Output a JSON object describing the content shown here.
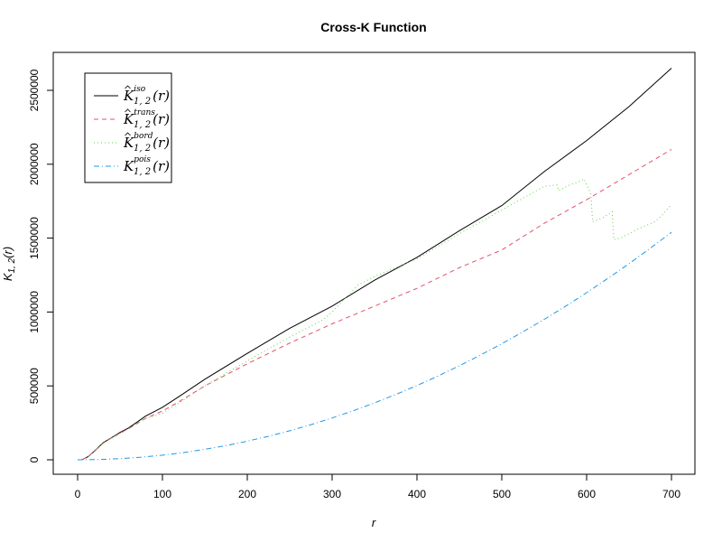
{
  "chart_data": {
    "type": "line",
    "title": "Cross-K Function",
    "xlabel": "r",
    "ylabel": "K",
    "ylabel_sub": "1, 2",
    "ylabel_arg": "(r)",
    "xlim": [
      0,
      700
    ],
    "ylim": [
      0,
      2600000
    ],
    "xticks": [
      0,
      100,
      200,
      300,
      400,
      500,
      600,
      700
    ],
    "yticks": [
      0,
      500000,
      1000000,
      1500000,
      2000000,
      2500000
    ],
    "ytick_labels": [
      "0",
      "500000",
      "1000000",
      "1500000",
      "2000000",
      "2500000"
    ],
    "grid": false,
    "legend_position": "top-left",
    "series": [
      {
        "key": "iso",
        "name_main": "K",
        "name_sup": "iso",
        "name_sub": "1, 2",
        "name_arg": "(r)",
        "color": "#000000",
        "dash": "none",
        "x": [
          5,
          12,
          20,
          30,
          40,
          50,
          60,
          70,
          80,
          90,
          100,
          120,
          150,
          200,
          250,
          300,
          350,
          400,
          450,
          500,
          550,
          600,
          650,
          700
        ],
        "y": [
          0,
          20000,
          60000,
          115000,
          150000,
          185000,
          215000,
          255000,
          295000,
          325000,
          355000,
          430000,
          545000,
          720000,
          890000,
          1040000,
          1215000,
          1370000,
          1550000,
          1720000,
          1950000,
          2160000,
          2390000,
          2650000
        ]
      },
      {
        "key": "trans",
        "name_main": "K",
        "name_sup": "trans",
        "name_sub": "1, 2",
        "name_arg": "(r)",
        "color": "#df536b",
        "dash": "5,4",
        "x": [
          5,
          12,
          20,
          30,
          40,
          50,
          60,
          70,
          80,
          90,
          100,
          120,
          150,
          200,
          250,
          300,
          350,
          400,
          450,
          500,
          550,
          600,
          650,
          700
        ],
        "y": [
          0,
          20000,
          60000,
          112000,
          148000,
          180000,
          210000,
          245000,
          280000,
          305000,
          330000,
          395000,
          500000,
          650000,
          790000,
          920000,
          1040000,
          1160000,
          1300000,
          1420000,
          1600000,
          1760000,
          1930000,
          2100000
        ]
      },
      {
        "key": "bord",
        "name_main": "K",
        "name_sup": "bord",
        "name_sub": "1, 2",
        "name_arg": "(r)",
        "color": "#61d04f",
        "dash": "1,3",
        "x": [
          5,
          12,
          20,
          30,
          40,
          50,
          60,
          70,
          80,
          90,
          100,
          120,
          150,
          200,
          250,
          290,
          300,
          310,
          330,
          350,
          400,
          450,
          500,
          550,
          565,
          567,
          580,
          590,
          597,
          600,
          605,
          607,
          620,
          630,
          632,
          640,
          660,
          680,
          690,
          700
        ],
        "y": [
          0,
          20000,
          60000,
          112000,
          148000,
          180000,
          210000,
          245000,
          280000,
          295000,
          315000,
          385000,
          500000,
          670000,
          830000,
          950000,
          1000000,
          1060000,
          1180000,
          1240000,
          1360000,
          1530000,
          1690000,
          1850000,
          1860000,
          1820000,
          1860000,
          1880000,
          1900000,
          1860000,
          1800000,
          1610000,
          1640000,
          1680000,
          1490000,
          1500000,
          1560000,
          1610000,
          1660000,
          1730000
        ]
      },
      {
        "key": "pois",
        "name_main": "K",
        "name_sup": "pois",
        "name_sub": "1, 2",
        "name_arg": "(r)",
        "color": "#2297e6",
        "dash": "6,3,1,3",
        "x": [
          0,
          25,
          50,
          75,
          100,
          125,
          150,
          175,
          200,
          225,
          250,
          275,
          300,
          325,
          350,
          375,
          400,
          425,
          450,
          475,
          500,
          525,
          550,
          575,
          600,
          625,
          650,
          675,
          700
        ],
        "y": [
          0,
          1960,
          7850,
          17670,
          31420,
          49090,
          70690,
          96210,
          125660,
          159040,
          196350,
          237580,
          282740,
          331830,
          384850,
          441790,
          502650,
          567450,
          636170,
          708820,
          785400,
          865900,
          950330,
          1038690,
          1130970,
          1227180,
          1327320,
          1431390,
          1539380
        ]
      }
    ]
  }
}
